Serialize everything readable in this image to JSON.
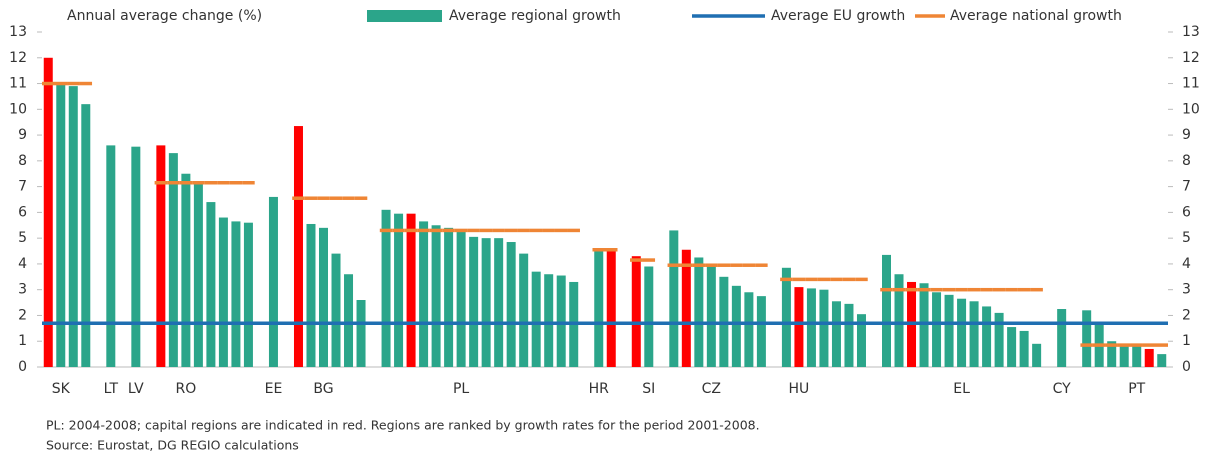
{
  "chart_data": {
    "type": "bar",
    "y_label": "Annual average change (%)",
    "categories": [
      null,
      "SK",
      null,
      null,
      null,
      "LT",
      null,
      "LV",
      null,
      null,
      null,
      "RO",
      null,
      null,
      null,
      null,
      null,
      null,
      "EE",
      null,
      null,
      null,
      "BG",
      null,
      null,
      null,
      null,
      null,
      null,
      null,
      null,
      null,
      null,
      "PL",
      null,
      null,
      null,
      null,
      null,
      null,
      null,
      null,
      null,
      null,
      "HR",
      null,
      null,
      null,
      "SI",
      null,
      null,
      null,
      null,
      "CZ",
      null,
      null,
      null,
      null,
      null,
      null,
      "HU",
      null,
      null,
      null,
      null,
      null,
      null,
      null,
      null,
      null,
      null,
      null,
      null,
      "EL",
      null,
      null,
      null,
      null,
      null,
      null,
      null,
      "CY",
      null,
      null,
      null,
      null,
      null,
      "PT",
      null,
      null
    ],
    "series": [
      {
        "name": "Average regional growth",
        "color": "#2ba58a",
        "values": [
          12.0,
          11.0,
          10.9,
          10.2,
          null,
          8.6,
          null,
          8.55,
          null,
          8.6,
          8.3,
          7.5,
          7.1,
          6.4,
          5.8,
          5.65,
          5.6,
          null,
          6.6,
          null,
          9.35,
          5.55,
          5.4,
          4.4,
          3.6,
          2.6,
          null,
          6.1,
          5.95,
          5.95,
          5.65,
          5.5,
          5.4,
          5.3,
          5.05,
          5.0,
          5.0,
          4.85,
          4.4,
          3.7,
          3.6,
          3.55,
          3.3,
          null,
          4.6,
          4.55,
          null,
          4.3,
          3.9,
          null,
          5.3,
          4.55,
          4.25,
          3.95,
          3.5,
          3.15,
          2.9,
          2.75,
          null,
          3.85,
          3.1,
          3.05,
          3.0,
          2.55,
          2.45,
          2.05,
          null,
          4.35,
          3.6,
          3.3,
          3.25,
          2.9,
          2.8,
          2.65,
          2.55,
          2.35,
          2.1,
          1.55,
          1.4,
          0.9,
          null,
          2.25,
          null,
          2.2,
          1.7,
          1.0,
          0.9,
          0.85,
          0.7,
          0.5
        ],
        "colors": [
          "#ff0000",
          "#2ba58a",
          "#2ba58a",
          "#2ba58a",
          null,
          "#2ba58a",
          null,
          "#2ba58a",
          null,
          "#ff0000",
          "#2ba58a",
          "#2ba58a",
          "#2ba58a",
          "#2ba58a",
          "#2ba58a",
          "#2ba58a",
          "#2ba58a",
          null,
          "#2ba58a",
          null,
          "#ff0000",
          "#2ba58a",
          "#2ba58a",
          "#2ba58a",
          "#2ba58a",
          "#2ba58a",
          null,
          "#2ba58a",
          "#2ba58a",
          "#ff0000",
          "#2ba58a",
          "#2ba58a",
          "#2ba58a",
          "#2ba58a",
          "#2ba58a",
          "#2ba58a",
          "#2ba58a",
          "#2ba58a",
          "#2ba58a",
          "#2ba58a",
          "#2ba58a",
          "#2ba58a",
          "#2ba58a",
          null,
          "#2ba58a",
          "#ff0000",
          null,
          "#ff0000",
          "#2ba58a",
          null,
          "#2ba58a",
          "#ff0000",
          "#2ba58a",
          "#2ba58a",
          "#2ba58a",
          "#2ba58a",
          "#2ba58a",
          "#2ba58a",
          null,
          "#2ba58a",
          "#ff0000",
          "#2ba58a",
          "#2ba58a",
          "#2ba58a",
          "#2ba58a",
          "#2ba58a",
          null,
          "#2ba58a",
          "#2ba58a",
          "#ff0000",
          "#2ba58a",
          "#2ba58a",
          "#2ba58a",
          "#2ba58a",
          "#2ba58a",
          "#2ba58a",
          "#2ba58a",
          "#2ba58a",
          "#2ba58a",
          "#2ba58a",
          null,
          "#2ba58a",
          null,
          "#2ba58a",
          "#2ba58a",
          "#2ba58a",
          "#2ba58a",
          "#2ba58a",
          "#ff0000",
          "#2ba58a"
        ]
      },
      {
        "name": "Average EU growth",
        "color": "#1f6fb2",
        "value": 1.7
      },
      {
        "name": "Average national growth",
        "color": "#ef8535",
        "values": [
          11.0,
          11.0,
          11.0,
          11.0,
          null,
          null,
          null,
          null,
          null,
          7.15,
          7.15,
          7.15,
          7.15,
          7.15,
          7.15,
          7.15,
          7.15,
          null,
          null,
          null,
          6.55,
          6.55,
          6.55,
          6.55,
          6.55,
          6.55,
          null,
          5.3,
          5.3,
          5.3,
          5.3,
          5.3,
          5.3,
          5.3,
          5.3,
          5.3,
          5.3,
          5.3,
          5.3,
          5.3,
          5.3,
          5.3,
          5.3,
          null,
          4.55,
          4.55,
          null,
          4.15,
          4.15,
          null,
          3.95,
          3.95,
          3.95,
          3.95,
          3.95,
          3.95,
          3.95,
          3.95,
          null,
          3.4,
          3.4,
          3.4,
          3.4,
          3.4,
          3.4,
          3.4,
          null,
          3.0,
          3.0,
          3.0,
          3.0,
          3.0,
          3.0,
          3.0,
          3.0,
          3.0,
          3.0,
          3.0,
          3.0,
          3.0,
          null,
          null,
          null,
          0.85,
          0.85,
          0.85,
          0.85,
          0.85,
          0.85,
          0.85
        ]
      }
    ],
    "ylim": [
      0,
      13
    ],
    "yticks": [
      0,
      1,
      2,
      3,
      4,
      5,
      6,
      7,
      8,
      9,
      10,
      11,
      12,
      13
    ],
    "footnotes": [
      "PL: 2004-2008; capital regions are indicated in red. Regions are ranked by growth rates for the period 2001-2008.",
      "Source: Eurostat, DG REGIO calculations"
    ]
  }
}
